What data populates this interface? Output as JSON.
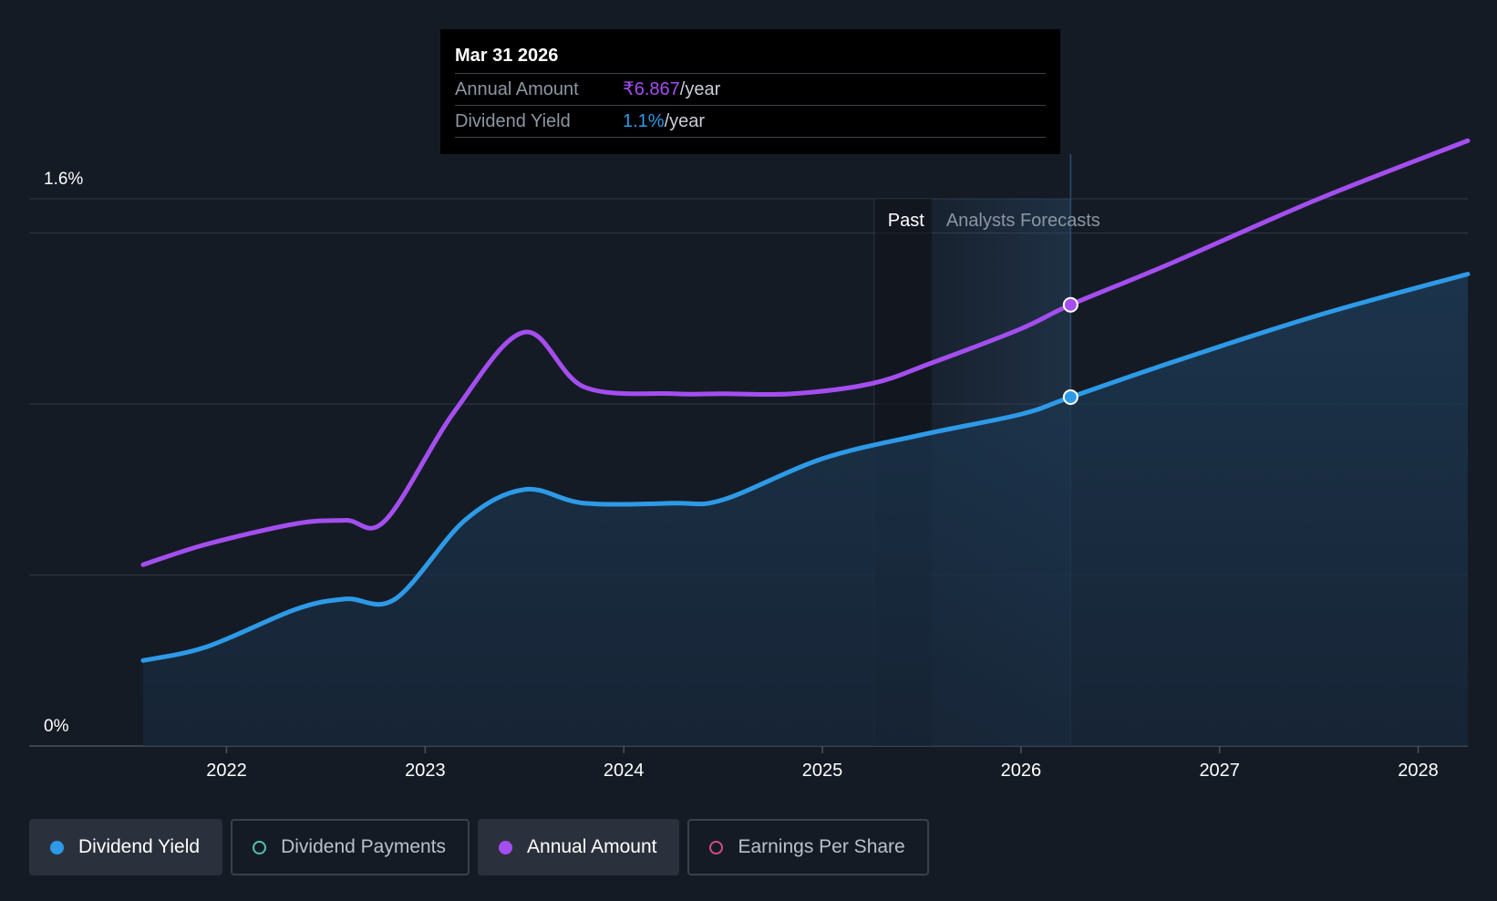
{
  "colors": {
    "background": "#151b25",
    "dividend_yield": "#2d9ae8",
    "annual_amount": "#a44ef0",
    "dividend_payments": "#4fc3b1",
    "earnings_per_share": "#d14b86"
  },
  "tooltip": {
    "date": "Mar 31 2026",
    "rows": [
      {
        "label": "Annual Amount",
        "value": "₹6.867",
        "unit": "/year"
      },
      {
        "label": "Dividend Yield",
        "value": "1.1%",
        "unit": "/year"
      }
    ]
  },
  "legend": [
    {
      "label": "Dividend Yield",
      "active": true,
      "marker": "filled-dot"
    },
    {
      "label": "Dividend Payments",
      "active": false,
      "marker": "hollow-dot"
    },
    {
      "label": "Annual Amount",
      "active": true,
      "marker": "filled-dot"
    },
    {
      "label": "Earnings Per Share",
      "active": false,
      "marker": "hollow-dot"
    }
  ],
  "chart_data": {
    "type": "line",
    "y_tick_labels": [
      "1.6%",
      "0%"
    ],
    "ylim": [
      0,
      1.6
    ],
    "x_tick_labels": [
      "2022",
      "2023",
      "2024",
      "2025",
      "2026",
      "2027",
      "2028"
    ],
    "xlim": [
      2021.3,
      2028.25
    ],
    "regions": {
      "past_label": "Past",
      "forecast_label": "Analysts Forecasts",
      "past_end": 2025.55,
      "highlight_end": 2026.25
    },
    "grid": true,
    "series": [
      {
        "name": "Dividend Yield",
        "area": true,
        "points": [
          [
            2021.58,
            0.25
          ],
          [
            2021.9,
            0.29
          ],
          [
            2022.35,
            0.4
          ],
          [
            2022.6,
            0.43
          ],
          [
            2022.85,
            0.43
          ],
          [
            2023.2,
            0.66
          ],
          [
            2023.5,
            0.75
          ],
          [
            2023.8,
            0.71
          ],
          [
            2024.25,
            0.71
          ],
          [
            2024.5,
            0.72
          ],
          [
            2025.0,
            0.84
          ],
          [
            2025.5,
            0.91
          ],
          [
            2026.0,
            0.97
          ],
          [
            2026.25,
            1.02
          ],
          [
            2026.75,
            1.12
          ],
          [
            2027.5,
            1.26
          ],
          [
            2028.25,
            1.38
          ]
        ]
      },
      {
        "name": "Annual Amount",
        "area": false,
        "points": [
          [
            2021.58,
            0.53
          ],
          [
            2021.9,
            0.59
          ],
          [
            2022.35,
            0.65
          ],
          [
            2022.6,
            0.66
          ],
          [
            2022.8,
            0.66
          ],
          [
            2023.15,
            0.98
          ],
          [
            2023.5,
            1.21
          ],
          [
            2023.8,
            1.05
          ],
          [
            2024.25,
            1.03
          ],
          [
            2024.5,
            1.03
          ],
          [
            2024.85,
            1.03
          ],
          [
            2025.25,
            1.06
          ],
          [
            2025.55,
            1.12
          ],
          [
            2026.0,
            1.22
          ],
          [
            2026.25,
            1.29
          ],
          [
            2026.75,
            1.41
          ],
          [
            2027.5,
            1.6
          ],
          [
            2028.25,
            1.77
          ]
        ]
      }
    ],
    "highlight": {
      "x": 2026.25,
      "series_values": {
        "Dividend Yield": 1.02,
        "Annual Amount": 1.29
      }
    }
  }
}
